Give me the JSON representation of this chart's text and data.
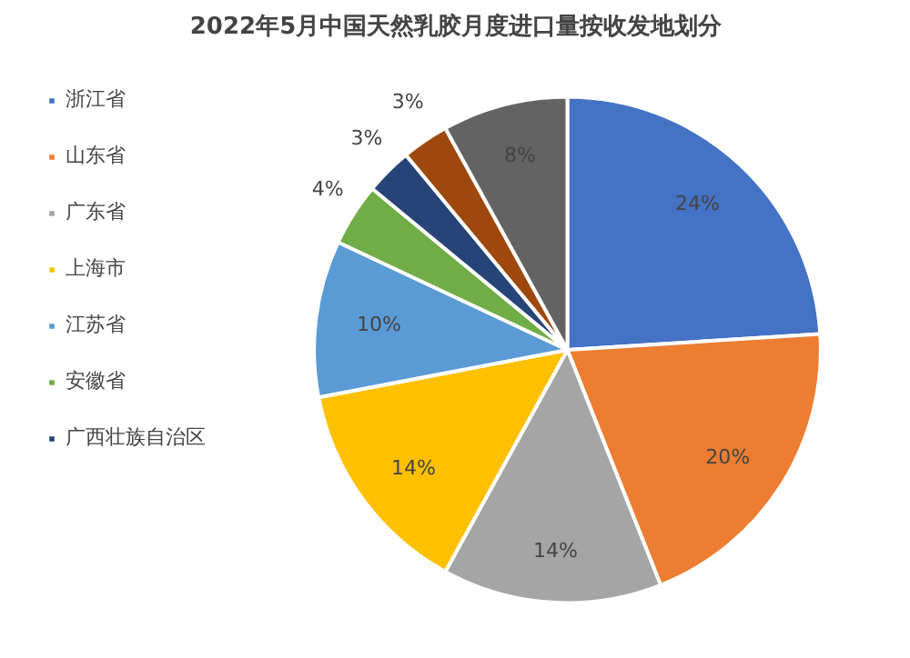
{
  "chart_data": {
    "type": "pie",
    "title": "2022年5月中国天然乳胶月度进口量按收发地划分",
    "categories": [
      "浙江省",
      "山东省",
      "广东省",
      "上海市",
      "江苏省",
      "安徽省",
      "广西壮族自治区",
      null,
      null
    ],
    "values": [
      24,
      20,
      14,
      14,
      10,
      4,
      3,
      3,
      8
    ],
    "colors": [
      "#4472c4",
      "#ed7d31",
      "#a5a5a5",
      "#ffc000",
      "#5b9bd5",
      "#70ad47",
      "#264478",
      "#9e480e",
      "#636363"
    ],
    "value_labels": [
      "24%",
      "20%",
      "14%",
      "14%",
      "10%",
      "4%",
      "3%",
      "3%",
      "8%"
    ],
    "legend": "left"
  }
}
